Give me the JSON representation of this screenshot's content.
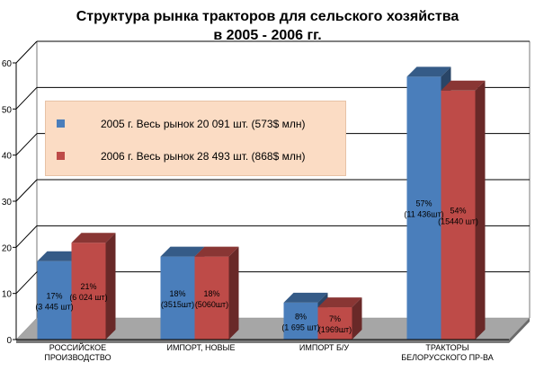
{
  "title_lines": [
    "Структура рынка тракторов для сельского хозяйства",
    "в 2005 - 2006 гг."
  ],
  "chart_data": {
    "type": "bar",
    "title": "Структура рынка тракторов для сельского хозяйства в 2005 - 2006 гг.",
    "categories": [
      [
        "РОССИЙСКОЕ",
        "ПРОИЗВОДСТВО"
      ],
      [
        "ИМПОРТ, НОВЫЕ"
      ],
      [
        "ИМПОРТ Б/У"
      ],
      [
        "ТРАКТОРЫ",
        "БЕЛОРУССКОГО ПР-ВА"
      ]
    ],
    "ylim": [
      0,
      60
    ],
    "yticks": [
      0,
      10,
      20,
      30,
      40,
      50,
      60
    ],
    "grid": true,
    "legend_position": "top-left inside",
    "series": [
      {
        "name": "2005 г. Весь рынок 20 091 шт. (573$ млн)",
        "color": "#4a7ebb",
        "values": [
          17,
          18,
          8,
          57
        ],
        "labels": [
          [
            "17%",
            "(3 445 шт)"
          ],
          [
            "18%",
            "(3515шт)"
          ],
          [
            "8%",
            "(1 695 шт)"
          ],
          [
            "57%",
            "(11 436шт)"
          ]
        ]
      },
      {
        "name": "2006 г. Весь рынок 28 493 шт. (868$ млн)",
        "color": "#be4b48",
        "values": [
          21,
          18,
          7,
          54
        ],
        "labels": [
          [
            "21%",
            "(6 024 шт)"
          ],
          [
            "18%",
            "(5060шт)"
          ],
          [
            "7%",
            "(1969шт)"
          ],
          [
            "54%",
            "(15440 шт)"
          ]
        ]
      }
    ]
  }
}
